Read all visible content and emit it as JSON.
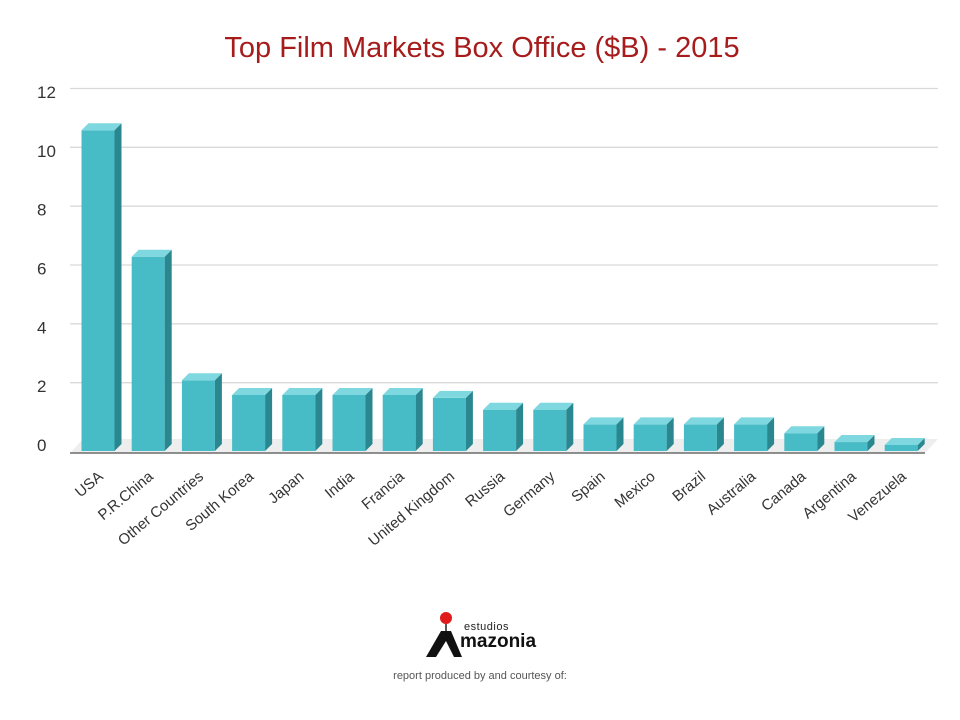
{
  "chart_data": {
    "type": "bar",
    "title": "Top Film Markets Box Office ($B) - 2015",
    "xlabel": "",
    "ylabel": "",
    "ylim": [
      0,
      12
    ],
    "yticks": [
      0,
      2,
      4,
      6,
      8,
      10,
      12
    ],
    "grid": true,
    "style": "3d-column",
    "bar_color": "#48bcc6",
    "categories": [
      "USA",
      "P.R.China",
      "Other Countries",
      "South Korea",
      "Japan",
      "India",
      "Francia",
      "United Kingdom",
      "Russia",
      "Germany",
      "Spain",
      "Mexico",
      "Brazil",
      "Australia",
      "Canada",
      "Argentina",
      "Venezuela"
    ],
    "values": [
      10.7,
      6.4,
      2.2,
      1.7,
      1.7,
      1.7,
      1.7,
      1.6,
      1.2,
      1.2,
      0.7,
      0.7,
      0.7,
      0.7,
      0.4,
      0.1,
      0.0
    ]
  },
  "logo": {
    "small_text": "estudios",
    "brand_text": "mazonia"
  },
  "footer": {
    "credit": "report produced by and courtesy of:"
  }
}
